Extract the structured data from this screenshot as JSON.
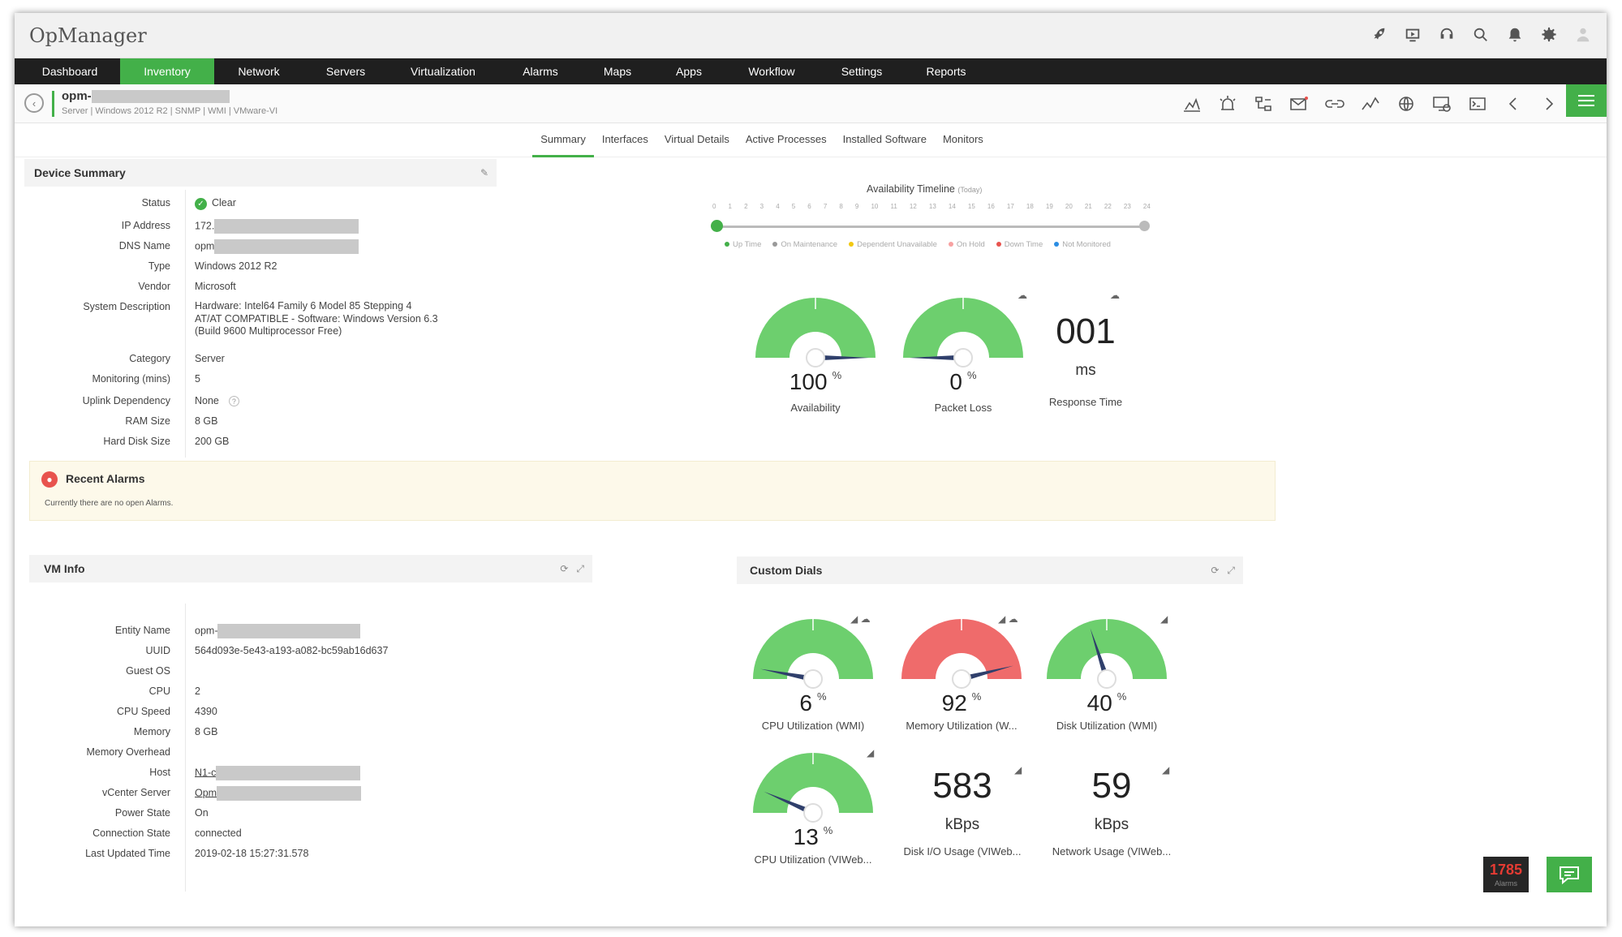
{
  "app": {
    "title": "OpManager"
  },
  "nav": {
    "items": [
      "Dashboard",
      "Inventory",
      "Network",
      "Servers",
      "Virtualization",
      "Alarms",
      "Maps",
      "Apps",
      "Workflow",
      "Settings",
      "Reports"
    ],
    "active": "Inventory"
  },
  "device": {
    "name": "opm-",
    "meta": "Server | Windows 2012 R2 | SNMP | WMI | VMware-VI"
  },
  "tabs": {
    "items": [
      "Summary",
      "Interfaces",
      "Virtual Details",
      "Active Processes",
      "Installed Software",
      "Monitors"
    ],
    "active": "Summary"
  },
  "device_summary": {
    "title": "Device Summary",
    "status_label": "Status",
    "status_value": "Clear",
    "ip_label": "IP Address",
    "ip_value": "172.",
    "dns_label": "DNS Name",
    "dns_value": "opm",
    "type_label": "Type",
    "type_value": "Windows 2012 R2",
    "vendor_label": "Vendor",
    "vendor_value": "Microsoft",
    "sysdesc_label": "System Description",
    "sysdesc_line1": "Hardware: Intel64 Family 6 Model 85 Stepping 4",
    "sysdesc_line2": "AT/AT COMPATIBLE - Software: Windows Version 6.3",
    "sysdesc_line3": "(Build 9600 Multiprocessor Free)",
    "category_label": "Category",
    "category_value": "Server",
    "monitoring_label": "Monitoring (mins)",
    "monitoring_value": "5",
    "uplink_label": "Uplink Dependency",
    "uplink_value": "None",
    "ram_label": "RAM Size",
    "ram_value": "8 GB",
    "disk_label": "Hard Disk Size",
    "disk_value": "200 GB"
  },
  "availability": {
    "title": "Availability Timeline",
    "subtitle": "(Today)",
    "hours": [
      "0",
      "1",
      "2",
      "3",
      "4",
      "5",
      "6",
      "7",
      "8",
      "9",
      "10",
      "11",
      "12",
      "13",
      "14",
      "15",
      "16",
      "17",
      "18",
      "19",
      "20",
      "21",
      "22",
      "23",
      "24"
    ],
    "legend": [
      {
        "label": "Up Time",
        "color": "#43b049"
      },
      {
        "label": "On Maintenance",
        "color": "#999999"
      },
      {
        "label": "Dependent Unavailable",
        "color": "#f2c811"
      },
      {
        "label": "On Hold",
        "color": "#f7a1a1"
      },
      {
        "label": "Down Time",
        "color": "#e8534e"
      },
      {
        "label": "Not Monitored",
        "color": "#2b8de3"
      }
    ]
  },
  "top_gauges": {
    "availability": {
      "value": "100",
      "unit": "%",
      "label": "Availability",
      "level": 100,
      "color": "#6dcf6e"
    },
    "packet_loss": {
      "value": "0",
      "unit": "%",
      "label": "Packet Loss",
      "level": 0,
      "color": "#6dcf6e"
    },
    "response": {
      "value": "001",
      "unit": "ms",
      "label": "Response Time"
    }
  },
  "alarms": {
    "title": "Recent Alarms",
    "message": "Currently there are no open Alarms."
  },
  "vm_info": {
    "title": "VM Info",
    "entity_label": "Entity Name",
    "entity_value": "opm-",
    "uuid_label": "UUID",
    "uuid_value": "564d093e-5e43-a193-a082-bc59ab16d637",
    "guest_label": "Guest OS",
    "guest_value": "",
    "cpu_label": "CPU",
    "cpu_value": "2",
    "cpuspeed_label": "CPU Speed",
    "cpuspeed_value": "4390",
    "memory_label": "Memory",
    "memory_value": "8 GB",
    "memover_label": "Memory Overhead",
    "memover_value": "",
    "host_label": "Host",
    "host_value": "N1-c",
    "vcenter_label": "vCenter Server",
    "vcenter_value": "Opm",
    "power_label": "Power State",
    "power_value": "On",
    "conn_label": "Connection State",
    "conn_value": "connected",
    "updated_label": "Last Updated Time",
    "updated_value": "2019-02-18 15:27:31.578"
  },
  "custom_dials": {
    "title": "Custom Dials",
    "cpu_wmi": {
      "value": "6",
      "unit": "%",
      "label": "CPU Utilization (WMI)",
      "level": 6,
      "color": "#6dcf6e"
    },
    "mem_wmi": {
      "value": "92",
      "unit": "%",
      "label": "Memory Utilization (W...",
      "level": 92,
      "color": "#ef6b6b"
    },
    "disk_wmi": {
      "value": "40",
      "unit": "%",
      "label": "Disk Utilization (WMI)",
      "level": 40,
      "color": "#6dcf6e"
    },
    "cpu_vi": {
      "value": "13",
      "unit": "%",
      "label": "CPU Utilization (VIWeb...",
      "level": 13,
      "color": "#6dcf6e"
    },
    "disk_io": {
      "value": "583",
      "unit": "kBps",
      "label": "Disk I/O Usage (VIWeb..."
    },
    "net": {
      "value": "59",
      "unit": "kBps",
      "label": "Network Usage (VIWeb..."
    }
  },
  "footer": {
    "alarm_count": "1785",
    "alarm_label": "Alarms"
  }
}
